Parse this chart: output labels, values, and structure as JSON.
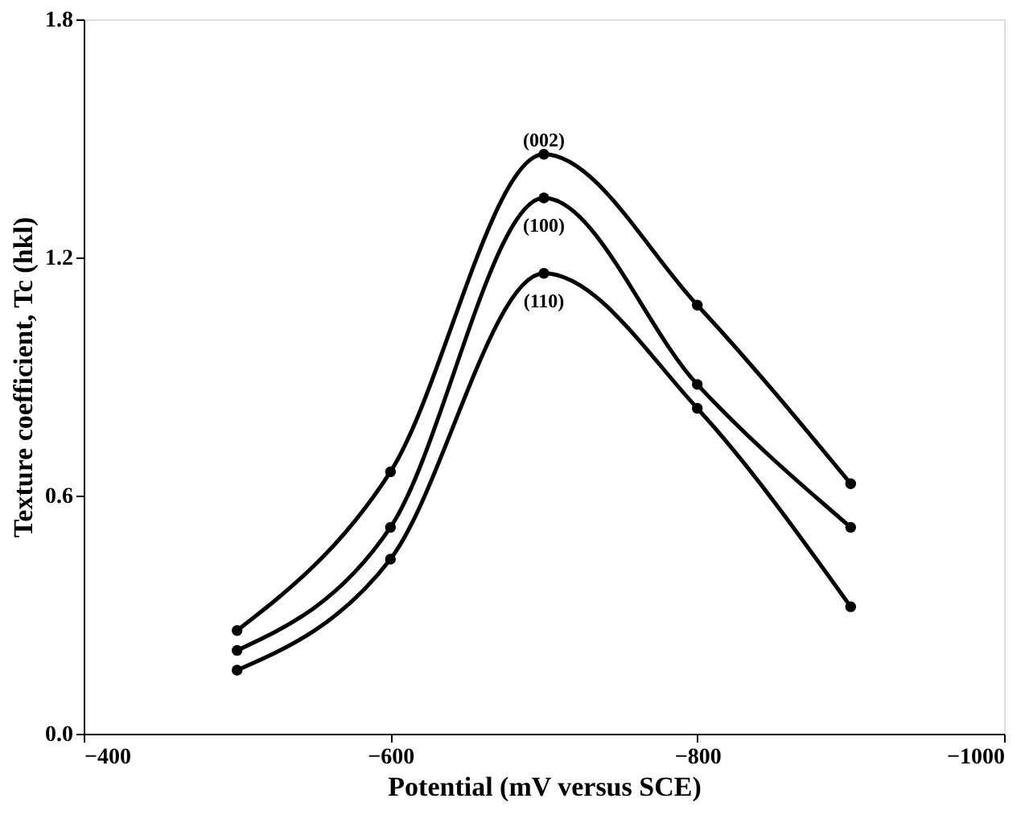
{
  "chart_data": {
    "type": "line",
    "xlabel": "Potential (mV versus SCE)",
    "ylabel": "Texture coefficient, Tc (hkl)",
    "x": [
      -500,
      -600,
      -700,
      -800,
      -900
    ],
    "series": [
      {
        "name": "(002)",
        "color": "#000000",
        "values": [
          0.26,
          0.66,
          1.46,
          1.08,
          0.63
        ]
      },
      {
        "name": "(100)",
        "color": "#000000",
        "values": [
          0.21,
          0.52,
          1.35,
          0.88,
          0.52
        ]
      },
      {
        "name": "(110)",
        "color": "#000000",
        "values": [
          0.16,
          0.44,
          1.16,
          0.82,
          0.32
        ]
      }
    ],
    "xlim": [
      -400,
      -1000
    ],
    "xticks": [
      -400,
      -600,
      -800,
      -1000
    ],
    "ylim": [
      0,
      1.8
    ],
    "yticks": [
      {
        "value": 0,
        "label": "0.0"
      },
      0.6,
      1.2,
      1.8
    ],
    "marker": "circle",
    "line_style": "solid",
    "grid": false,
    "legend": false
  }
}
